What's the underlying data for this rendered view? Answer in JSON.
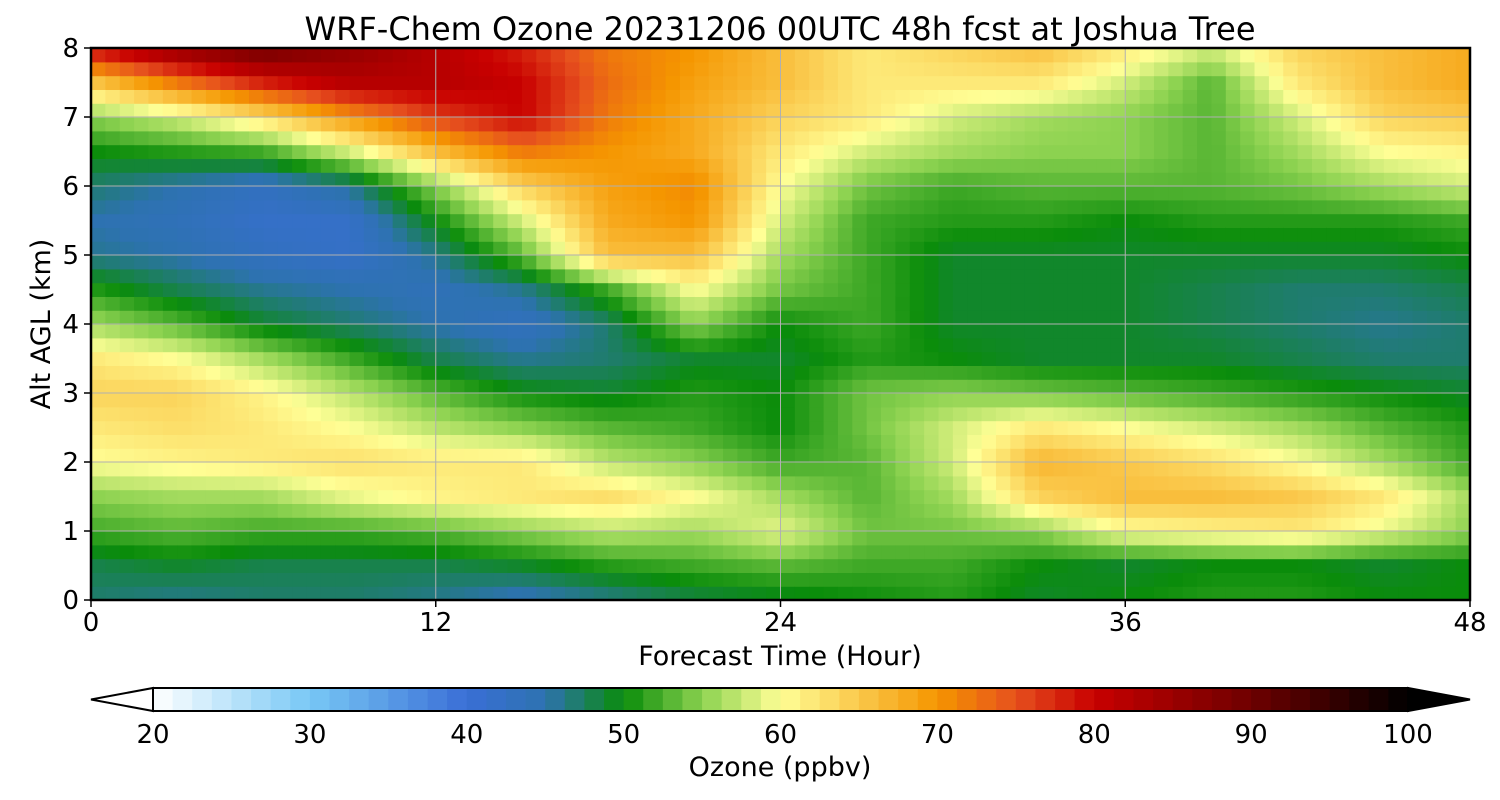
{
  "chart_data": {
    "type": "heatmap",
    "title": "WRF-Chem Ozone  20231206 00UTC 48h fcst at Joshua Tree",
    "xlabel": "Forecast Time (Hour)",
    "ylabel": "Alt AGL (km)",
    "xlim": [
      0,
      48
    ],
    "ylim": [
      0,
      8
    ],
    "xticks": [
      0,
      12,
      24,
      36,
      48
    ],
    "yticks": [
      0,
      1,
      2,
      3,
      4,
      5,
      6,
      7,
      8
    ],
    "grid": true,
    "x": [
      0,
      3,
      6,
      9,
      12,
      15,
      18,
      21,
      24,
      27,
      30,
      33,
      36,
      39,
      42,
      45,
      48
    ],
    "y": [
      0,
      0.5,
      1,
      1.5,
      2,
      2.5,
      3,
      3.5,
      4,
      4.5,
      5,
      5.5,
      6,
      6.5,
      7,
      7.5,
      8
    ],
    "z": [
      [
        47,
        46,
        47,
        47,
        46,
        44,
        46,
        48,
        49,
        50,
        51,
        49,
        50,
        51,
        51,
        50,
        50
      ],
      [
        48,
        49,
        48,
        48,
        48,
        49,
        51,
        52,
        53,
        52,
        52,
        50,
        49,
        50,
        50,
        49,
        50
      ],
      [
        52,
        53,
        52,
        52,
        53,
        55,
        57,
        56,
        59,
        54,
        54,
        55,
        60,
        61,
        62,
        59,
        55
      ],
      [
        55,
        56,
        56,
        59,
        61,
        62,
        63,
        60,
        56,
        53,
        56,
        64,
        66,
        66,
        65,
        62,
        56
      ],
      [
        60,
        61,
        62,
        63,
        62,
        62,
        57,
        55,
        52,
        53,
        58,
        67,
        65,
        63,
        60,
        56,
        52
      ],
      [
        62,
        63,
        62,
        60,
        57,
        55,
        53,
        52,
        50,
        54,
        58,
        62,
        60,
        58,
        56,
        53,
        51
      ],
      [
        64,
        64,
        61,
        57,
        53,
        50,
        49,
        51,
        50,
        54,
        55,
        54,
        53,
        52,
        51,
        50,
        49
      ],
      [
        62,
        60,
        56,
        52,
        48,
        46,
        47,
        49,
        49,
        51,
        50,
        49,
        49,
        49,
        48,
        47,
        47
      ],
      [
        56,
        53,
        49,
        47,
        45,
        43,
        47,
        55,
        50,
        52,
        49,
        49,
        49,
        48,
        47,
        46,
        47
      ],
      [
        51,
        48,
        46,
        45,
        44,
        46,
        52,
        60,
        54,
        52,
        49,
        49,
        49,
        48,
        47,
        47,
        48
      ],
      [
        46,
        45,
        43,
        42,
        46,
        53,
        66,
        66,
        56,
        52,
        49,
        49,
        49,
        49,
        49,
        49,
        50
      ],
      [
        45,
        44,
        42,
        42,
        50,
        58,
        68,
        70,
        58,
        52,
        51,
        51,
        50,
        51,
        51,
        51,
        52
      ],
      [
        47,
        45,
        43,
        46,
        55,
        64,
        69,
        71,
        60,
        54,
        52,
        53,
        53,
        53,
        54,
        56,
        58
      ],
      [
        50,
        51,
        52,
        58,
        66,
        72,
        70,
        68,
        62,
        58,
        56,
        55,
        55,
        53,
        56,
        60,
        61
      ],
      [
        55,
        58,
        63,
        70,
        76,
        80,
        72,
        68,
        64,
        62,
        58,
        56,
        55,
        53,
        58,
        64,
        65
      ],
      [
        65,
        72,
        78,
        82,
        82,
        80,
        73,
        69,
        66,
        62,
        62,
        62,
        58,
        53,
        62,
        66,
        68
      ],
      [
        80,
        86,
        90,
        86,
        82,
        78,
        72,
        70,
        66,
        62,
        64,
        66,
        62,
        58,
        64,
        66,
        68
      ]
    ],
    "colorbar": {
      "label": "Ozone  (ppbv)",
      "min": 20,
      "max": 100,
      "ticks": [
        20,
        30,
        40,
        50,
        60,
        70,
        80,
        90,
        100
      ],
      "extend": "both",
      "stops": [
        {
          "v": 20,
          "c": "#ffffff"
        },
        {
          "v": 30,
          "c": "#78c8f5"
        },
        {
          "v": 40,
          "c": "#3a6ed6"
        },
        {
          "v": 45,
          "c": "#2d72b0"
        },
        {
          "v": 50,
          "c": "#0a8c0a"
        },
        {
          "v": 55,
          "c": "#8cd250"
        },
        {
          "v": 60,
          "c": "#ffff96"
        },
        {
          "v": 65,
          "c": "#fac84b"
        },
        {
          "v": 70,
          "c": "#f59600"
        },
        {
          "v": 75,
          "c": "#e6501e"
        },
        {
          "v": 80,
          "c": "#c80000"
        },
        {
          "v": 90,
          "c": "#6e0000"
        },
        {
          "v": 100,
          "c": "#000000"
        }
      ]
    }
  }
}
